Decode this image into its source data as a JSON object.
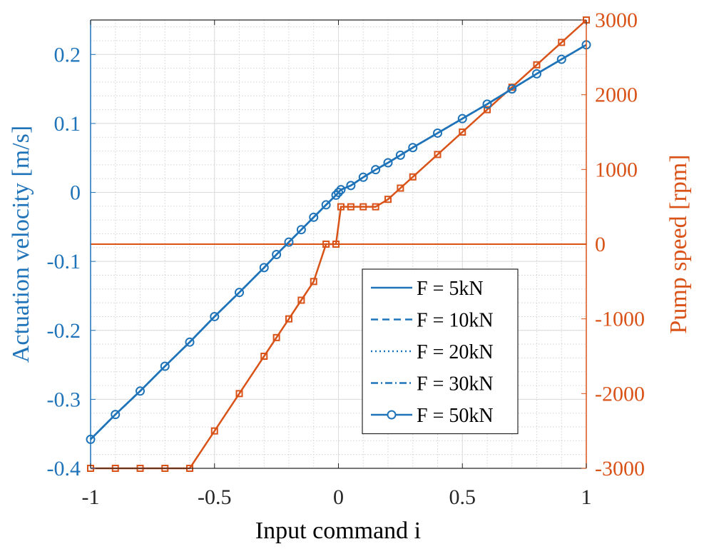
{
  "chart_data": {
    "type": "line",
    "title": "",
    "xlabel": "Input command i",
    "ylabel_left": "Actuation velocity [m/s]",
    "ylabel_right": "Pump speed [rpm]",
    "xlim": [
      -1,
      1
    ],
    "ylim_left": [
      -0.4,
      0.25
    ],
    "ylim_right": [
      -3000,
      3000
    ],
    "grid": true,
    "minor_grid": true,
    "x_ticks": [
      "-1",
      "-0.5",
      "0",
      "0.5",
      "1"
    ],
    "x_tick_values": [
      -1,
      -0.5,
      0,
      0.5,
      1
    ],
    "left_ticks": [
      "-0.4",
      "-0.3",
      "-0.2",
      "-0.1",
      "0",
      "0.1",
      "0.2"
    ],
    "left_tick_values": [
      -0.4,
      -0.3,
      -0.2,
      -0.1,
      0,
      0.1,
      0.2
    ],
    "right_ticks": [
      "-3000",
      "-2000",
      "-1000",
      "0",
      "1000",
      "2000",
      "3000"
    ],
    "right_tick_values": [
      -3000,
      -2000,
      -1000,
      0,
      1000,
      2000,
      3000
    ],
    "legend_placement": "center-right",
    "colors": {
      "left_axis": "#1f73b8",
      "right_axis": "#d95319"
    },
    "series_left": [
      {
        "name": "F = 5kN",
        "style": "solid",
        "marker": "none",
        "x": [
          -1,
          -0.9,
          -0.8,
          -0.7,
          -0.6,
          -0.5,
          -0.4,
          -0.3,
          -0.25,
          -0.2,
          -0.15,
          -0.1,
          -0.05,
          -0.01,
          0,
          0.01,
          0.05,
          0.1,
          0.15,
          0.2,
          0.25,
          0.3,
          0.4,
          0.5,
          0.6,
          0.7,
          0.8,
          0.9,
          1
        ],
        "y": [
          -0.358,
          -0.322,
          -0.288,
          -0.252,
          -0.217,
          -0.18,
          -0.145,
          -0.109,
          -0.09,
          -0.072,
          -0.054,
          -0.036,
          -0.018,
          -0.004,
          0,
          0.004,
          0.01,
          0.022,
          0.033,
          0.043,
          0.054,
          0.065,
          0.086,
          0.107,
          0.128,
          0.15,
          0.172,
          0.193,
          0.214
        ]
      },
      {
        "name": "F = 10kN",
        "style": "dashed",
        "marker": "none",
        "x": [
          -1,
          -0.9,
          -0.8,
          -0.7,
          -0.6,
          -0.5,
          -0.4,
          -0.3,
          -0.25,
          -0.2,
          -0.15,
          -0.1,
          -0.05,
          -0.01,
          0,
          0.01,
          0.05,
          0.1,
          0.15,
          0.2,
          0.25,
          0.3,
          0.4,
          0.5,
          0.6,
          0.7,
          0.8,
          0.9,
          1
        ],
        "y": [
          -0.358,
          -0.322,
          -0.288,
          -0.252,
          -0.217,
          -0.18,
          -0.145,
          -0.109,
          -0.09,
          -0.072,
          -0.054,
          -0.036,
          -0.018,
          -0.004,
          0,
          0.004,
          0.01,
          0.022,
          0.033,
          0.043,
          0.054,
          0.065,
          0.086,
          0.107,
          0.128,
          0.15,
          0.172,
          0.193,
          0.214
        ]
      },
      {
        "name": "F = 20kN",
        "style": "dotted",
        "marker": "none",
        "x": [
          -1,
          -0.9,
          -0.8,
          -0.7,
          -0.6,
          -0.5,
          -0.4,
          -0.3,
          -0.25,
          -0.2,
          -0.15,
          -0.1,
          -0.05,
          -0.01,
          0,
          0.01,
          0.05,
          0.1,
          0.15,
          0.2,
          0.25,
          0.3,
          0.4,
          0.5,
          0.6,
          0.7,
          0.8,
          0.9,
          1
        ],
        "y": [
          -0.358,
          -0.322,
          -0.288,
          -0.252,
          -0.217,
          -0.18,
          -0.145,
          -0.109,
          -0.09,
          -0.072,
          -0.054,
          -0.036,
          -0.018,
          -0.004,
          0,
          0.004,
          0.01,
          0.022,
          0.033,
          0.043,
          0.054,
          0.065,
          0.086,
          0.107,
          0.128,
          0.15,
          0.172,
          0.193,
          0.214
        ]
      },
      {
        "name": "F = 30kN",
        "style": "dashdot",
        "marker": "none",
        "x": [
          -1,
          -0.9,
          -0.8,
          -0.7,
          -0.6,
          -0.5,
          -0.4,
          -0.3,
          -0.25,
          -0.2,
          -0.15,
          -0.1,
          -0.05,
          -0.01,
          0,
          0.01,
          0.05,
          0.1,
          0.15,
          0.2,
          0.25,
          0.3,
          0.4,
          0.5,
          0.6,
          0.7,
          0.8,
          0.9,
          1
        ],
        "y": [
          -0.358,
          -0.322,
          -0.288,
          -0.252,
          -0.217,
          -0.18,
          -0.145,
          -0.109,
          -0.09,
          -0.072,
          -0.054,
          -0.036,
          -0.018,
          -0.004,
          0,
          0.004,
          0.01,
          0.022,
          0.033,
          0.043,
          0.054,
          0.065,
          0.086,
          0.107,
          0.128,
          0.15,
          0.172,
          0.193,
          0.214
        ]
      },
      {
        "name": "F = 50kN",
        "style": "solid",
        "marker": "circle",
        "x": [
          -1,
          -0.9,
          -0.8,
          -0.7,
          -0.6,
          -0.5,
          -0.4,
          -0.3,
          -0.25,
          -0.2,
          -0.15,
          -0.1,
          -0.05,
          -0.01,
          0,
          0.01,
          0.05,
          0.1,
          0.15,
          0.2,
          0.25,
          0.3,
          0.4,
          0.5,
          0.6,
          0.7,
          0.8,
          0.9,
          1
        ],
        "y": [
          -0.358,
          -0.322,
          -0.288,
          -0.252,
          -0.217,
          -0.18,
          -0.145,
          -0.109,
          -0.09,
          -0.072,
          -0.054,
          -0.036,
          -0.018,
          -0.004,
          0,
          0.004,
          0.01,
          0.022,
          0.033,
          0.043,
          0.054,
          0.065,
          0.086,
          0.107,
          0.128,
          0.15,
          0.172,
          0.193,
          0.214
        ]
      }
    ],
    "series_right": [
      {
        "name": "",
        "marker": "square",
        "x": [
          -1,
          -0.9,
          -0.8,
          -0.7,
          -0.6,
          -0.5,
          -0.4,
          -0.3,
          -0.25,
          -0.2,
          -0.15,
          -0.1,
          -0.05,
          -0.01,
          0.01,
          0.05,
          0.1,
          0.15,
          0.2,
          0.25,
          0.3,
          0.4,
          0.5,
          0.6,
          0.7,
          0.8,
          0.9,
          1
        ],
        "y": [
          -3000,
          -3000,
          -3000,
          -3000,
          -3000,
          -2500,
          -2000,
          -1500,
          -1250,
          -1000,
          -750,
          -500,
          0,
          0,
          500,
          500,
          500,
          500,
          600,
          750,
          900,
          1200,
          1500,
          1800,
          2100,
          2400,
          2700,
          3000
        ]
      }
    ],
    "reference_line_right": {
      "y": 0
    }
  }
}
